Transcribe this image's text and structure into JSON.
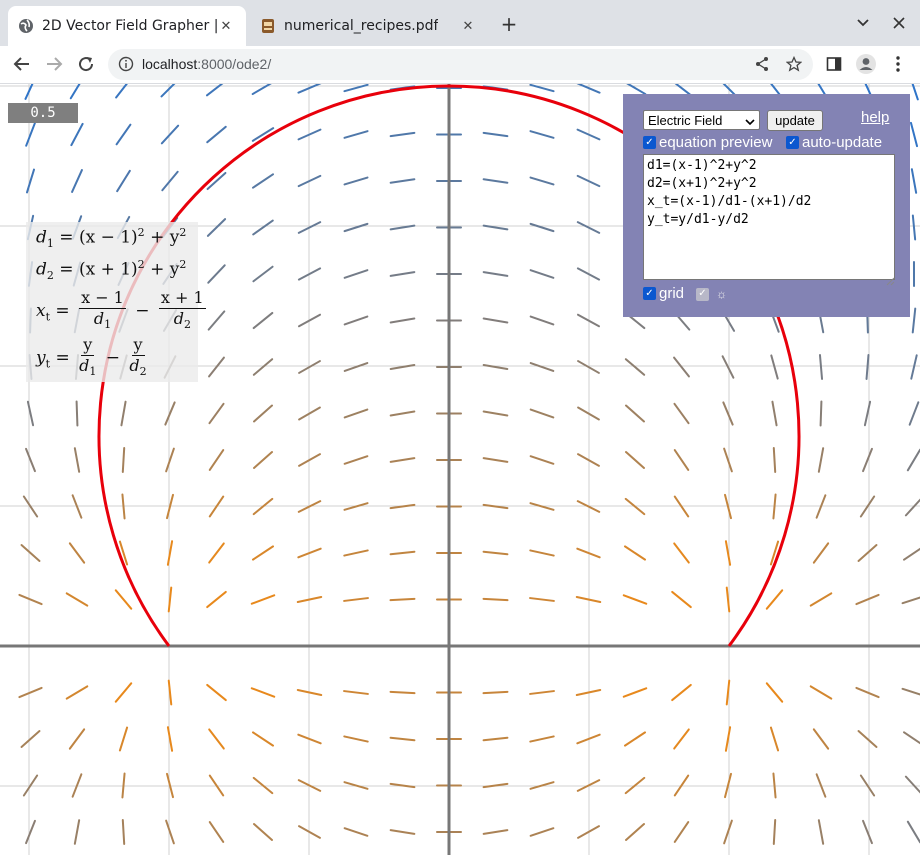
{
  "browser": {
    "tabs": [
      {
        "title": "2D Vector Field Grapher | ",
        "icon": "globe-icon",
        "active": true
      },
      {
        "title": "numerical_recipes.pdf",
        "icon": "pdf-doc-icon",
        "active": false
      }
    ],
    "url_host": "localhost",
    "url_path": ":8000/ode2/"
  },
  "page": {
    "scale_value": "0.5",
    "preview": {
      "d1": {
        "lhs": "d",
        "sub": "1",
        "rhs": "= (x − 1)",
        "tail": " + y"
      },
      "d2": {
        "lhs": "d",
        "sub": "2",
        "rhs": "= (x + 1)",
        "tail": " + y"
      },
      "sq": "2",
      "xt": {
        "lhs": "x",
        "sub": "t",
        "n1": "x − 1",
        "d1": "d",
        "d1sub": "1",
        "minus": "−",
        "n2": "x + 1",
        "d2": "d",
        "d2sub": "2"
      },
      "yt": {
        "lhs": "y",
        "sub": "t",
        "n1": "y",
        "d1": "d",
        "d1sub": "1",
        "minus": "−",
        "n2": "y",
        "d2": "d",
        "d2sub": "2"
      },
      "equals": "="
    },
    "panel": {
      "preset": "Electric Field",
      "update_label": "update",
      "help_label": "help",
      "equation_preview_label": "equation preview",
      "auto_update_label": "auto-update",
      "equations": "d1=(x-1)^2+y^2\nd2=(x+1)^2+y^2\nx_t=(x-1)/d1-(x+1)/d2\ny_t=y/d1-y/d2",
      "grid_label": "grid",
      "theme_icon": "sun-icon"
    },
    "plot": {
      "scale": 0.5,
      "origin_units": {
        "x": 0,
        "y": 0
      },
      "x_range": [
        -1.6,
        1.6
      ],
      "y_range": [
        -0.75,
        2.0
      ],
      "grid": true,
      "colors": {
        "axis": "#777777",
        "grid": "#d0d0d0",
        "curve": "#e8000b",
        "fast": "#e8891c",
        "slow": "#2e74c9"
      }
    }
  }
}
